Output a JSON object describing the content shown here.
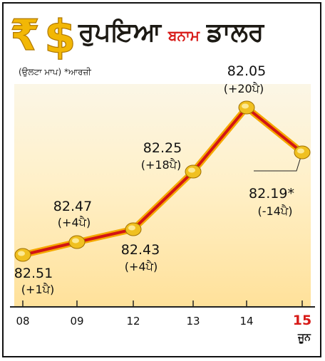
{
  "header": {
    "title_left": "ਰੁਪਇਆ",
    "title_mid": "ਬਨਾਮ",
    "title_right": "ਡਾਲਰ",
    "note": "(ਉਲਟਾ ਮਾਪ) *ਆਰਜ਼ੀ",
    "logo_symbols": [
      "₹",
      "$"
    ]
  },
  "colors": {
    "accent_red": "#d71a17",
    "line_red": "#d21414",
    "line_glow": "#f5a800",
    "point_gold": "#f0c020",
    "logo_gold": "#f2b705"
  },
  "chart_data": {
    "type": "line",
    "categories": [
      "08",
      "09",
      "12",
      "13",
      "14",
      "15"
    ],
    "values": [
      82.51,
      82.47,
      82.43,
      82.25,
      82.05,
      82.19
    ],
    "value_labels": [
      "82.51",
      "82.47",
      "82.43",
      "82.25",
      "82.05",
      "82.19*"
    ],
    "change_labels": [
      "(+1ਪੈ)",
      "(+4ਪੈ)",
      "(+4ਪੈ)",
      "(+18ਪੈ)",
      "(+20ਪੈ)",
      "(-14ਪੈ)"
    ],
    "inverted_scale": true,
    "x_unit": "ਜੂਨ",
    "ylim": [
      82.55,
      82.0
    ]
  }
}
